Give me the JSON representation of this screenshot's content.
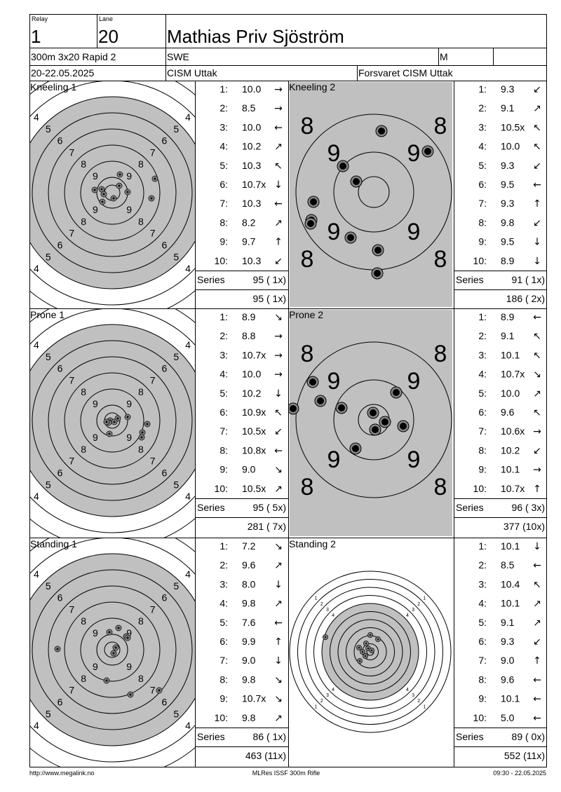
{
  "header": {
    "relay_label": "Relay",
    "relay": "1",
    "lane_label": "Lane",
    "lane": "20",
    "name": "Mathias Priv Sjöström",
    "event": "300m 3x20 Rapid 2",
    "country": "SWE",
    "gender": "M",
    "date": "20-22.05.2025",
    "club": "CISM Uttak",
    "team": "Forsvaret CISM Uttak"
  },
  "ring_labels": {
    "full": [
      "9",
      "8",
      "7",
      "6",
      "5",
      "4"
    ],
    "zoom": [
      "9",
      "8"
    ],
    "small": [
      "1",
      "2",
      "3",
      "4"
    ]
  },
  "panels": [
    {
      "title": "Kneeling 1",
      "target": "full",
      "series_label": "Series",
      "series": "95 ( 1x)",
      "total": "95 ( 1x)",
      "shots": [
        {
          "n": "1:",
          "score": "10.0",
          "dir": "→"
        },
        {
          "n": "2:",
          "score": "8.5",
          "dir": "→"
        },
        {
          "n": "3:",
          "score": "10.0",
          "dir": "←"
        },
        {
          "n": "4:",
          "score": "10.2",
          "dir": "↗"
        },
        {
          "n": "5:",
          "score": "10.3",
          "dir": "↖"
        },
        {
          "n": "6:",
          "score": "10.7x",
          "dir": "↓"
        },
        {
          "n": "7:",
          "score": "10.3",
          "dir": "←"
        },
        {
          "n": "8:",
          "score": "8.2",
          "dir": "↗"
        },
        {
          "n": "9:",
          "score": "9.7",
          "dir": "↑"
        },
        {
          "n": "10:",
          "score": "10.3",
          "dir": "↙"
        }
      ]
    },
    {
      "title": "Kneeling 2",
      "target": "zoom",
      "series_label": "Series",
      "series": "91 ( 1x)",
      "total": "186 ( 2x)",
      "shots": [
        {
          "n": "1:",
          "score": "9.3",
          "dir": "↙"
        },
        {
          "n": "2:",
          "score": "9.1",
          "dir": "↗"
        },
        {
          "n": "3:",
          "score": "10.5x",
          "dir": "↖"
        },
        {
          "n": "4:",
          "score": "10.0",
          "dir": "↖"
        },
        {
          "n": "5:",
          "score": "9.3",
          "dir": "↙"
        },
        {
          "n": "6:",
          "score": "9.5",
          "dir": "←"
        },
        {
          "n": "7:",
          "score": "9.3",
          "dir": "↑"
        },
        {
          "n": "8:",
          "score": "9.8",
          "dir": "↙"
        },
        {
          "n": "9:",
          "score": "9.5",
          "dir": "↓"
        },
        {
          "n": "10:",
          "score": "8.9",
          "dir": "↓"
        }
      ]
    },
    {
      "title": "Prone 1",
      "target": "full",
      "series_label": "Series",
      "series": "95 ( 5x)",
      "total": "281 ( 7x)",
      "shots": [
        {
          "n": "1:",
          "score": "8.9",
          "dir": "↘"
        },
        {
          "n": "2:",
          "score": "8.8",
          "dir": "→"
        },
        {
          "n": "3:",
          "score": "10.7x",
          "dir": "→"
        },
        {
          "n": "4:",
          "score": "10.0",
          "dir": "→"
        },
        {
          "n": "5:",
          "score": "10.2",
          "dir": "↓"
        },
        {
          "n": "6:",
          "score": "10.9x",
          "dir": "↖"
        },
        {
          "n": "7:",
          "score": "10.5x",
          "dir": "↙"
        },
        {
          "n": "8:",
          "score": "10.8x",
          "dir": "←"
        },
        {
          "n": "9:",
          "score": "9.0",
          "dir": "↘"
        },
        {
          "n": "10:",
          "score": "10.5x",
          "dir": "↗"
        }
      ]
    },
    {
      "title": "Prone 2",
      "target": "zoom",
      "series_label": "Series",
      "series": "96 ( 3x)",
      "total": "377 (10x)",
      "shots": [
        {
          "n": "1:",
          "score": "8.9",
          "dir": "←"
        },
        {
          "n": "2:",
          "score": "9.1",
          "dir": "↖"
        },
        {
          "n": "3:",
          "score": "10.1",
          "dir": "↖"
        },
        {
          "n": "4:",
          "score": "10.7x",
          "dir": "↘"
        },
        {
          "n": "5:",
          "score": "10.0",
          "dir": "↗"
        },
        {
          "n": "6:",
          "score": "9.6",
          "dir": "↖"
        },
        {
          "n": "7:",
          "score": "10.6x",
          "dir": "→"
        },
        {
          "n": "8:",
          "score": "10.2",
          "dir": "↙"
        },
        {
          "n": "9:",
          "score": "10.1",
          "dir": "→"
        },
        {
          "n": "10:",
          "score": "10.7x",
          "dir": "↑"
        }
      ]
    },
    {
      "title": "Standing 1",
      "target": "full",
      "series_label": "Series",
      "series": "86 ( 1x)",
      "total": "463 (11x)",
      "shots": [
        {
          "n": "1:",
          "score": "7.2",
          "dir": "↘"
        },
        {
          "n": "2:",
          "score": "9.6",
          "dir": "↗"
        },
        {
          "n": "3:",
          "score": "8.0",
          "dir": "↓"
        },
        {
          "n": "4:",
          "score": "9.8",
          "dir": "↗"
        },
        {
          "n": "5:",
          "score": "7.6",
          "dir": "←"
        },
        {
          "n": "6:",
          "score": "9.9",
          "dir": "↑"
        },
        {
          "n": "7:",
          "score": "9.0",
          "dir": "↓"
        },
        {
          "n": "8:",
          "score": "9.8",
          "dir": "↘"
        },
        {
          "n": "9:",
          "score": "10.7x",
          "dir": "↘"
        },
        {
          "n": "10:",
          "score": "9.8",
          "dir": "↗"
        }
      ]
    },
    {
      "title": "Standing 2",
      "target": "small",
      "series_label": "Series",
      "series": "89 ( 0x)",
      "total": "552 (11x)",
      "shots": [
        {
          "n": "1:",
          "score": "10.1",
          "dir": "↓"
        },
        {
          "n": "2:",
          "score": "8.5",
          "dir": "←"
        },
        {
          "n": "3:",
          "score": "10.4",
          "dir": "↖"
        },
        {
          "n": "4:",
          "score": "10.1",
          "dir": "↗"
        },
        {
          "n": "5:",
          "score": "9.1",
          "dir": "↗"
        },
        {
          "n": "6:",
          "score": "9.3",
          "dir": "↙"
        },
        {
          "n": "7:",
          "score": "9.0",
          "dir": "↑"
        },
        {
          "n": "8:",
          "score": "9.6",
          "dir": "←"
        },
        {
          "n": "9:",
          "score": "10.1",
          "dir": "←"
        },
        {
          "n": "10:",
          "score": "5.0",
          "dir": "←"
        }
      ]
    }
  ],
  "footer": {
    "left": "http://www.megalink.no",
    "center": "MLRes ISSF 300m Rifle",
    "right": "09:30 - 22.05.2025"
  }
}
